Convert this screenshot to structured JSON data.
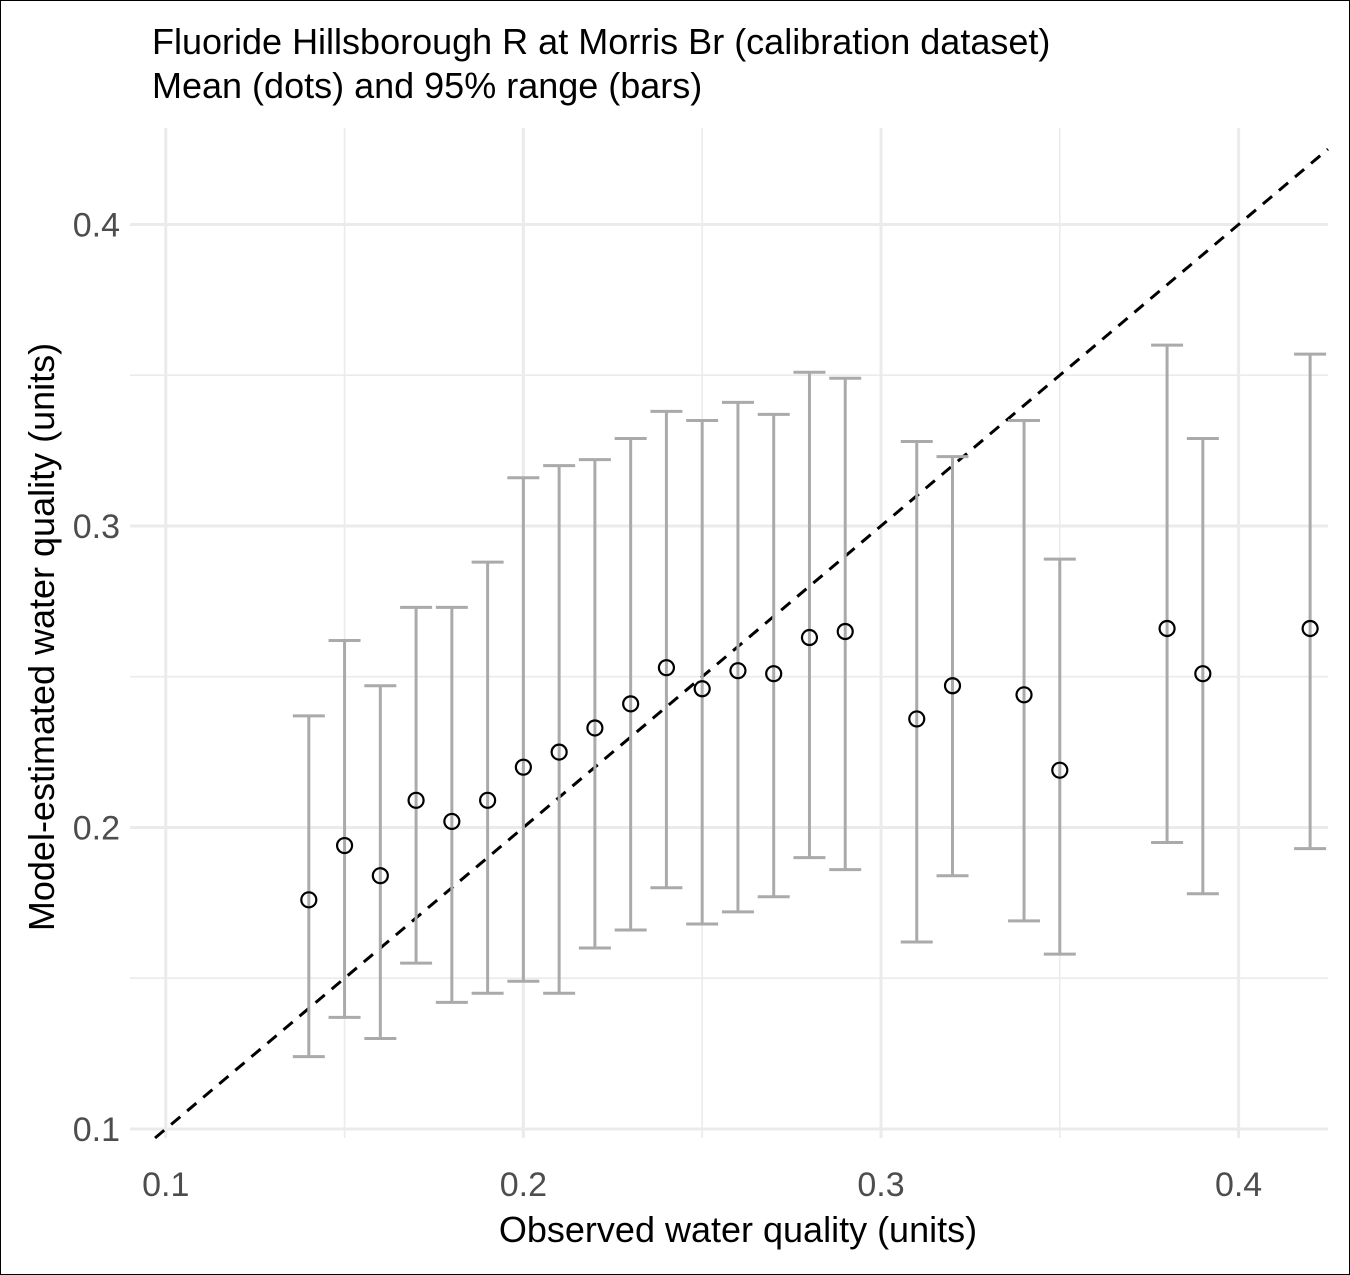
{
  "chart_data": {
    "type": "scatter",
    "title": "Fluoride Hillsborough R at Morris Br (calibration dataset)",
    "subtitle": "Mean (dots) and 95% range (bars)",
    "xlabel": "Observed water quality (units)",
    "ylabel": "Model-estimated water quality (units)",
    "xlim": [
      0.09,
      0.425
    ],
    "ylim": [
      0.097,
      0.432
    ],
    "xticks": [
      "0.1",
      "0.2",
      "0.3",
      "0.4"
    ],
    "yticks": [
      "0.1",
      "0.2",
      "0.3",
      "0.4"
    ],
    "grid": true,
    "reference_line": "1:1 dashed",
    "colors": {
      "errorbar": "#aaaaaa",
      "point": "#000000",
      "grid": "#ebebeb",
      "reference": "#000000"
    },
    "points": [
      {
        "x": 0.14,
        "mean": 0.176,
        "lo": 0.124,
        "hi": 0.237
      },
      {
        "x": 0.15,
        "mean": 0.194,
        "lo": 0.137,
        "hi": 0.262
      },
      {
        "x": 0.16,
        "mean": 0.184,
        "lo": 0.13,
        "hi": 0.247
      },
      {
        "x": 0.17,
        "mean": 0.209,
        "lo": 0.155,
        "hi": 0.273
      },
      {
        "x": 0.18,
        "mean": 0.202,
        "lo": 0.142,
        "hi": 0.273
      },
      {
        "x": 0.19,
        "mean": 0.209,
        "lo": 0.145,
        "hi": 0.288
      },
      {
        "x": 0.2,
        "mean": 0.22,
        "lo": 0.149,
        "hi": 0.316
      },
      {
        "x": 0.21,
        "mean": 0.225,
        "lo": 0.145,
        "hi": 0.32
      },
      {
        "x": 0.22,
        "mean": 0.233,
        "lo": 0.16,
        "hi": 0.322
      },
      {
        "x": 0.23,
        "mean": 0.241,
        "lo": 0.166,
        "hi": 0.329
      },
      {
        "x": 0.24,
        "mean": 0.253,
        "lo": 0.18,
        "hi": 0.338
      },
      {
        "x": 0.25,
        "mean": 0.246,
        "lo": 0.168,
        "hi": 0.335
      },
      {
        "x": 0.26,
        "mean": 0.252,
        "lo": 0.172,
        "hi": 0.341
      },
      {
        "x": 0.27,
        "mean": 0.251,
        "lo": 0.177,
        "hi": 0.337
      },
      {
        "x": 0.28,
        "mean": 0.263,
        "lo": 0.19,
        "hi": 0.351
      },
      {
        "x": 0.29,
        "mean": 0.265,
        "lo": 0.186,
        "hi": 0.349
      },
      {
        "x": 0.31,
        "mean": 0.236,
        "lo": 0.162,
        "hi": 0.328
      },
      {
        "x": 0.32,
        "mean": 0.247,
        "lo": 0.184,
        "hi": 0.323
      },
      {
        "x": 0.34,
        "mean": 0.244,
        "lo": 0.169,
        "hi": 0.335
      },
      {
        "x": 0.35,
        "mean": 0.219,
        "lo": 0.158,
        "hi": 0.289
      },
      {
        "x": 0.38,
        "mean": 0.266,
        "lo": 0.195,
        "hi": 0.36
      },
      {
        "x": 0.39,
        "mean": 0.251,
        "lo": 0.178,
        "hi": 0.329
      },
      {
        "x": 0.42,
        "mean": 0.266,
        "lo": 0.193,
        "hi": 0.357
      }
    ]
  }
}
